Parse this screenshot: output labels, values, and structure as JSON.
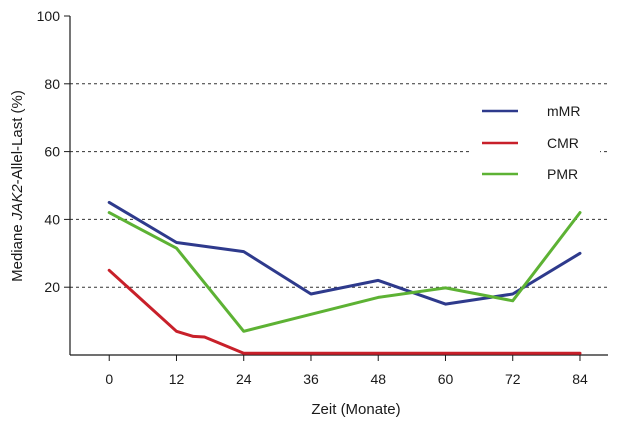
{
  "chart_data": {
    "type": "line",
    "xlabel": "Zeit (Monate)",
    "ylabel_prefix": "Mediane ",
    "ylabel_italic": "JAK2",
    "ylabel_suffix": "-Allel-Last (%)",
    "x_ticks": [
      "0",
      "12",
      "24",
      "36",
      "48",
      "60",
      "72",
      "84"
    ],
    "y_ticks": [
      "20",
      "40",
      "60",
      "80",
      "100"
    ],
    "xlim": [
      -7,
      89
    ],
    "ylim": [
      0,
      100
    ],
    "grid": "horizontal dashed at 20, 40, 60, 80",
    "legend_position": "right",
    "series": [
      {
        "name": "mMR",
        "color": "#2e3a8c",
        "x": [
          0,
          12,
          24,
          36,
          48,
          60,
          72,
          84
        ],
        "values": [
          45,
          33.2,
          30.5,
          18,
          22,
          15,
          18,
          30
        ]
      },
      {
        "name": "CMR",
        "color": "#c8202a",
        "x": [
          0,
          12,
          15,
          17,
          24,
          36,
          48,
          60,
          72,
          84
        ],
        "values": [
          25,
          7,
          5.5,
          5.3,
          0.5,
          0.5,
          0.5,
          0.5,
          0.5,
          0.5
        ]
      },
      {
        "name": "PMR",
        "color": "#5db234",
        "x": [
          0,
          12,
          24,
          36,
          48,
          60,
          72,
          84
        ],
        "values": [
          42,
          31.5,
          7,
          12,
          17,
          19.8,
          16,
          42
        ]
      }
    ]
  }
}
